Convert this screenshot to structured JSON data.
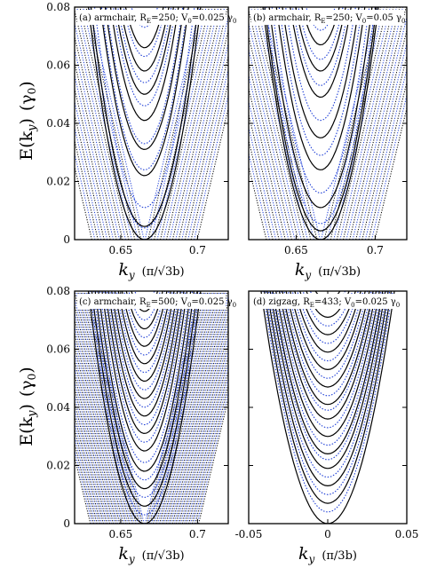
{
  "figure": {
    "ylabel_main": "E(k",
    "ylabel_sub": "y",
    "ylabel_tail": ")",
    "ylabel_unit": "(γ",
    "ylabel_unit_sub": "0",
    "ylabel_unit_tail": ")"
  },
  "colors": {
    "solid": "#000000",
    "dotted_blue": "#1f3fd6",
    "dotted_black": "#000000",
    "frame": "#000000",
    "label_bg": "#ffffff"
  },
  "chart_data": [
    {
      "panel": "a",
      "type": "line",
      "label_text": "(a) armchair, R",
      "label_sub": "E",
      "label_tail": "=250; V",
      "label_sub2": "0",
      "label_tail2": "=0.025 γ",
      "label_sub3": "0",
      "xlim": [
        0.62,
        0.72
      ],
      "ylim": [
        0,
        0.08
      ],
      "x_ticks": [
        "0.65",
        "0.7"
      ],
      "x_tick_values": [
        0.65,
        0.7
      ],
      "y_ticks": [
        "0",
        "0.02",
        "0.04",
        "0.06",
        "0.08"
      ],
      "y_tick_values": [
        0,
        0.02,
        0.04,
        0.06,
        0.08
      ],
      "x_label": "k",
      "x_label_sub": "y",
      "x_unit": "π/√3b",
      "center_k": 0.6655,
      "solid_band_minima": [
        0.0,
        0.0045,
        0.022,
        0.031,
        0.041,
        0.05,
        0.058,
        0.066
      ],
      "dotted_band_minima": [
        0.004,
        0.011,
        0.024,
        0.033,
        0.046,
        0.054,
        0.063,
        0.073
      ],
      "v_lines_count": 18
    },
    {
      "panel": "b",
      "type": "line",
      "label_text": "(b) armchair, R",
      "label_sub": "E",
      "label_tail": "=250; V",
      "label_sub2": "0",
      "label_tail2": "=0.05 γ",
      "label_sub3": "0",
      "xlim": [
        0.62,
        0.72
      ],
      "ylim": [
        0,
        0.08
      ],
      "x_ticks": [
        "0.65",
        "0.7"
      ],
      "x_tick_values": [
        0.65,
        0.7
      ],
      "x_label": "k",
      "x_label_sub": "y",
      "x_unit": "π/√3b",
      "center_k": 0.6655,
      "solid_band_minima": [
        0.0,
        0.003,
        0.011,
        0.024,
        0.035,
        0.049,
        0.058,
        0.067
      ],
      "dotted_band_minima": [
        0.0055,
        0.016,
        0.029,
        0.041,
        0.053,
        0.062,
        0.072
      ],
      "v_lines_count": 18
    },
    {
      "panel": "c",
      "type": "line",
      "label_text": "(c) armchair, R",
      "label_sub": "E",
      "label_tail": "=500; V",
      "label_sub2": "0",
      "label_tail2": "=0.025 γ",
      "label_sub3": "0",
      "xlim": [
        0.62,
        0.72
      ],
      "ylim": [
        0,
        0.08
      ],
      "x_ticks": [
        "0.65",
        "0.7"
      ],
      "x_tick_values": [
        0.65,
        0.7
      ],
      "y_ticks": [
        "0",
        "0.02",
        "0.04",
        "0.06",
        "0.08"
      ],
      "y_tick_values": [
        0,
        0.02,
        0.04,
        0.06,
        0.08
      ],
      "x_label": "k",
      "x_label_sub": "y",
      "x_unit": "π/√3b",
      "center_k": 0.6655,
      "solid_band_minima": [
        0.0,
        0.006,
        0.012,
        0.018,
        0.025,
        0.031,
        0.037,
        0.043,
        0.049,
        0.055,
        0.061,
        0.067,
        0.073
      ],
      "dotted_band_minima": [
        0.003,
        0.009,
        0.015,
        0.021,
        0.028,
        0.034,
        0.04,
        0.046,
        0.052,
        0.058,
        0.064,
        0.07,
        0.076
      ],
      "v_lines_count": 34
    },
    {
      "panel": "d",
      "type": "line",
      "label_text": "(d) zigzag, R",
      "label_sub": "E",
      "label_tail": "=433; V",
      "label_sub2": "0",
      "label_tail2": "=0.025 γ",
      "label_sub3": "0",
      "xlim": [
        -0.05,
        0.05
      ],
      "ylim": [
        0,
        0.08
      ],
      "x_ticks": [
        "-0.05",
        "0",
        "0.05"
      ],
      "x_tick_values": [
        -0.05,
        0,
        0.05
      ],
      "x_label": "k",
      "x_label_sub": "y",
      "x_unit": "π/3b",
      "center_k": 0.0,
      "solid_band_minima": [
        0.0,
        0.007,
        0.013,
        0.019,
        0.024,
        0.03,
        0.036,
        0.041,
        0.047,
        0.053,
        0.059,
        0.065,
        0.071,
        0.077
      ],
      "dotted_band_minima": [
        0.004,
        0.01,
        0.016,
        0.022,
        0.027,
        0.033,
        0.039,
        0.044,
        0.05,
        0.056,
        0.062,
        0.068,
        0.074
      ]
    }
  ]
}
